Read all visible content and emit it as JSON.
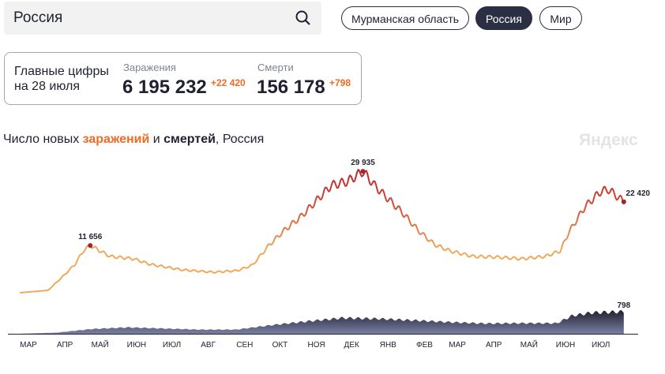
{
  "search": {
    "value": "Россия"
  },
  "regions": [
    {
      "label": "Мурманская область",
      "active": false
    },
    {
      "label": "Россия",
      "active": true
    },
    {
      "label": "Мир",
      "active": false
    }
  ],
  "summary": {
    "caption_line1": "Главные цифры",
    "caption_line2": "на 28 июля",
    "cases_label": "Заражения",
    "cases_total": "6 195 232",
    "cases_new": "+22 420",
    "deaths_label": "Смерти",
    "deaths_total": "156 178",
    "deaths_new": "+798"
  },
  "chart_title": {
    "pre": "Число новых ",
    "cases": "заражений",
    "mid": " и ",
    "deaths": "смертей",
    "post": ", Россия"
  },
  "logo": "Яндекс",
  "colors": {
    "cases_low": "#f0a95c",
    "cases_high": "#b7262e",
    "deaths_top": "#1f2130",
    "deaths_bottom": "#7a7fa3",
    "accent": "#f06a22"
  },
  "chart_data": {
    "type": "line+area",
    "x_unit": "days since 1 Mar 2020",
    "month_ticks": [
      {
        "label": "МАР",
        "day": 0
      },
      {
        "label": "АПР",
        "day": 31
      },
      {
        "label": "МАЙ",
        "day": 61
      },
      {
        "label": "ИЮН",
        "day": 92
      },
      {
        "label": "ИЮЛ",
        "day": 122
      },
      {
        "label": "АВГ",
        "day": 153
      },
      {
        "label": "СЕН",
        "day": 184
      },
      {
        "label": "ОКТ",
        "day": 214
      },
      {
        "label": "НОЯ",
        "day": 245
      },
      {
        "label": "ДЕК",
        "day": 275
      },
      {
        "label": "ЯНВ",
        "day": 306
      },
      {
        "label": "ФЕВ",
        "day": 337
      },
      {
        "label": "МАР",
        "day": 365
      },
      {
        "label": "АПР",
        "day": 396
      },
      {
        "label": "МАЙ",
        "day": 426
      },
      {
        "label": "ИЮН",
        "day": 457
      },
      {
        "label": "ИЮЛ",
        "day": 487
      }
    ],
    "cases": [
      [
        0,
        0
      ],
      [
        24,
        580
      ],
      [
        37,
        4100
      ],
      [
        47,
        7000
      ],
      [
        54,
        10300
      ],
      [
        60,
        11656
      ],
      [
        77,
        8950
      ],
      [
        97,
        8370
      ],
      [
        111,
        7000
      ],
      [
        138,
        5640
      ],
      [
        165,
        5060
      ],
      [
        185,
        5450
      ],
      [
        198,
        6800
      ],
      [
        212,
        11670
      ],
      [
        225,
        15370
      ],
      [
        239,
        18680
      ],
      [
        252,
        22570
      ],
      [
        265,
        26460
      ],
      [
        279,
        27430
      ],
      [
        292,
        29935
      ],
      [
        302,
        26460
      ],
      [
        312,
        23540
      ],
      [
        326,
        19650
      ],
      [
        339,
        15370
      ],
      [
        353,
        11870
      ],
      [
        366,
        10310
      ],
      [
        386,
        8950
      ],
      [
        407,
        8760
      ],
      [
        427,
        8370
      ],
      [
        447,
        8950
      ],
      [
        460,
        10310
      ],
      [
        467,
        14790
      ],
      [
        481,
        21210
      ],
      [
        494,
        24900
      ],
      [
        501,
        25480
      ],
      [
        514,
        22420
      ]
    ],
    "deaths": [
      [
        0,
        0
      ],
      [
        31,
        40
      ],
      [
        61,
        170
      ],
      [
        92,
        230
      ],
      [
        122,
        190
      ],
      [
        153,
        150
      ],
      [
        184,
        150
      ],
      [
        214,
        310
      ],
      [
        245,
        450
      ],
      [
        275,
        570
      ],
      [
        306,
        540
      ],
      [
        337,
        480
      ],
      [
        365,
        420
      ],
      [
        396,
        370
      ],
      [
        426,
        380
      ],
      [
        457,
        380
      ],
      [
        470,
        650
      ],
      [
        487,
        760
      ],
      [
        514,
        798
      ]
    ],
    "annotations": [
      {
        "series": "cases",
        "day": 60,
        "label": "11 656"
      },
      {
        "series": "cases",
        "day": 292,
        "label": "29 935"
      },
      {
        "series": "cases",
        "day": 514,
        "label": "22 420"
      },
      {
        "series": "deaths",
        "day": 514,
        "label": "798"
      }
    ]
  }
}
